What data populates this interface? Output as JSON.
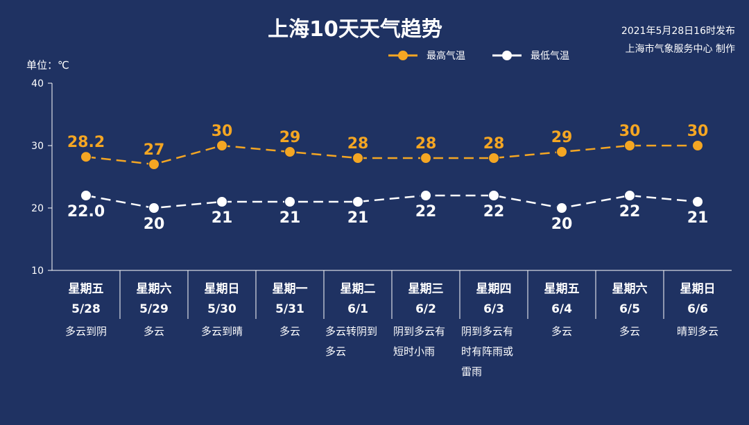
{
  "header": {
    "title": "上海10天天气趋势",
    "publish_time": "2021年5月28日16时发布",
    "producer": "上海市气象服务中心 制作"
  },
  "colors": {
    "background": "#1f3262",
    "high": "#f4a623",
    "low": "#ffffff",
    "axis": "#ffffff"
  },
  "chart_data": {
    "type": "line",
    "unit_label": "单位：℃",
    "ylim": [
      10,
      40
    ],
    "yticks": [
      10,
      20,
      30,
      40
    ],
    "legend_position": "top-center",
    "grid": false,
    "days": [
      {
        "weekday": "星期五",
        "date": "5/28",
        "weather": [
          "多云到阴"
        ]
      },
      {
        "weekday": "星期六",
        "date": "5/29",
        "weather": [
          "多云"
        ]
      },
      {
        "weekday": "星期日",
        "date": "5/30",
        "weather": [
          "多云到晴"
        ]
      },
      {
        "weekday": "星期一",
        "date": "5/31",
        "weather": [
          "多云"
        ]
      },
      {
        "weekday": "星期二",
        "date": "6/1",
        "weather": [
          "多云转阴到",
          "多云"
        ]
      },
      {
        "weekday": "星期三",
        "date": "6/2",
        "weather": [
          "阴到多云有",
          "短时小雨"
        ]
      },
      {
        "weekday": "星期四",
        "date": "6/3",
        "weather": [
          "阴到多云有",
          "时有阵雨或",
          "雷雨"
        ]
      },
      {
        "weekday": "星期五",
        "date": "6/4",
        "weather": [
          "多云"
        ]
      },
      {
        "weekday": "星期六",
        "date": "6/5",
        "weather": [
          "多云"
        ]
      },
      {
        "weekday": "星期日",
        "date": "6/6",
        "weather": [
          "晴到多云"
        ]
      }
    ],
    "series": [
      {
        "name": "最高气温",
        "color": "#f4a623",
        "values": [
          28.2,
          27,
          30,
          29,
          28,
          28,
          28,
          29,
          30,
          30
        ],
        "labels": [
          "28.2",
          "27",
          "30",
          "29",
          "28",
          "28",
          "28",
          "29",
          "30",
          "30"
        ]
      },
      {
        "name": "最低气温",
        "color": "#ffffff",
        "values": [
          22.0,
          20,
          21,
          21,
          21,
          22,
          22,
          20,
          22,
          21
        ],
        "labels": [
          "22.0",
          "20",
          "21",
          "21",
          "21",
          "22",
          "22",
          "20",
          "22",
          "21"
        ]
      }
    ]
  }
}
